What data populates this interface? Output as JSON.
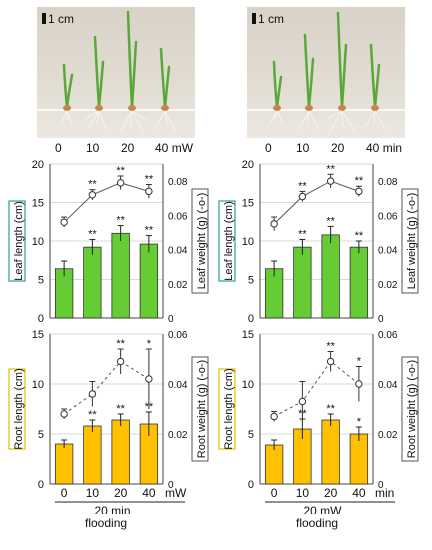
{
  "photos": [
    {
      "scale_label": "1 cm",
      "labels": [
        "0",
        "10",
        "20",
        "40"
      ],
      "unit": "mW"
    },
    {
      "scale_label": "1 cm",
      "labels": [
        "0",
        "10",
        "20",
        "40"
      ],
      "unit": "min"
    }
  ],
  "captions": {
    "left_condition": "20 min",
    "right_condition": "20 mW",
    "left_flooding": "flooding",
    "right_flooding": "flooding",
    "left_unit": "mW",
    "right_unit": "min"
  },
  "colors": {
    "leaf_bar": "#66cc33",
    "root_bar": "#ffc000",
    "leaf_box": "#2aa198",
    "root_box": "#e0c000"
  },
  "chart_data": [
    {
      "type": "bar",
      "categories": [
        "0",
        "10",
        "20",
        "40"
      ],
      "ylabel": "Leaf length (cm)",
      "y2label": "Leaf weight (g) (-o-)",
      "ylim": [
        0,
        20
      ],
      "yticks": [
        0,
        5,
        10,
        15,
        20
      ],
      "y2lim": [
        0,
        0.09
      ],
      "y2ticks": [
        "0",
        "0.02",
        "0.04",
        "0.06",
        "0.08"
      ],
      "bars": [
        6.4,
        9.2,
        11.0,
        9.6
      ],
      "bar_err": [
        1.0,
        1.0,
        1.0,
        1.1
      ],
      "bar_sig": [
        "",
        "**",
        "**",
        "**"
      ],
      "line": [
        0.056,
        0.072,
        0.079,
        0.074
      ],
      "line_err": [
        0.003,
        0.003,
        0.004,
        0.004
      ],
      "line_sig": [
        "",
        "**",
        "**",
        "**"
      ],
      "line_style": "solid"
    },
    {
      "type": "bar",
      "categories": [
        "0",
        "10",
        "20",
        "40"
      ],
      "ylabel": "Leaf length (cm)",
      "y2label": "Leaf weight (g) (-o-)",
      "ylim": [
        0,
        20
      ],
      "yticks": [
        0,
        5,
        10,
        15,
        20
      ],
      "y2lim": [
        0,
        0.09
      ],
      "y2ticks": [
        "0",
        "0.02",
        "0.04",
        "0.06",
        "0.08"
      ],
      "bars": [
        6.4,
        9.2,
        10.8,
        9.2
      ],
      "bar_err": [
        1.0,
        1.0,
        1.1,
        0.8
      ],
      "bar_sig": [
        "",
        "**",
        "**",
        "**"
      ],
      "line": [
        0.055,
        0.071,
        0.08,
        0.074
      ],
      "line_err": [
        0.004,
        0.003,
        0.004,
        0.003
      ],
      "line_sig": [
        "",
        "**",
        "**",
        "**"
      ],
      "line_style": "solid"
    },
    {
      "type": "bar",
      "categories": [
        "0",
        "10",
        "20",
        "40"
      ],
      "ylabel": "Root length (cm)",
      "y2label": "Root weight (g) (-o-)",
      "ylim": [
        0,
        15
      ],
      "yticks": [
        0,
        5,
        10,
        15
      ],
      "y2lim": [
        0,
        0.06
      ],
      "y2ticks": [
        "0",
        "0.02",
        "0.04",
        "0.06"
      ],
      "bars": [
        4.0,
        5.8,
        6.4,
        6.0
      ],
      "bar_err": [
        0.4,
        0.6,
        0.6,
        1.2
      ],
      "bar_sig": [
        "",
        "**",
        "**",
        "**"
      ],
      "line": [
        0.028,
        0.036,
        0.049,
        0.042
      ],
      "line_err": [
        0.002,
        0.005,
        0.005,
        0.012
      ],
      "line_sig": [
        "",
        "",
        "**",
        "*"
      ],
      "line_style": "dashed"
    },
    {
      "type": "bar",
      "categories": [
        "0",
        "10",
        "20",
        "40"
      ],
      "ylabel": "Root length (cm)",
      "y2label": "Root weight (g) (-o-)",
      "ylim": [
        0,
        15
      ],
      "yticks": [
        0,
        5,
        10,
        15
      ],
      "y2lim": [
        0,
        0.06
      ],
      "y2ticks": [
        "0",
        "0.02",
        "0.04",
        "0.06"
      ],
      "bars": [
        3.9,
        5.5,
        6.4,
        5.0
      ],
      "bar_err": [
        0.5,
        1.0,
        0.6,
        0.7
      ],
      "bar_sig": [
        "",
        "**",
        "**",
        "*"
      ],
      "line": [
        0.027,
        0.033,
        0.049,
        0.04
      ],
      "line_err": [
        0.002,
        0.008,
        0.004,
        0.007
      ],
      "line_sig": [
        "",
        "",
        "**",
        "*"
      ],
      "line_style": "dashed"
    }
  ]
}
